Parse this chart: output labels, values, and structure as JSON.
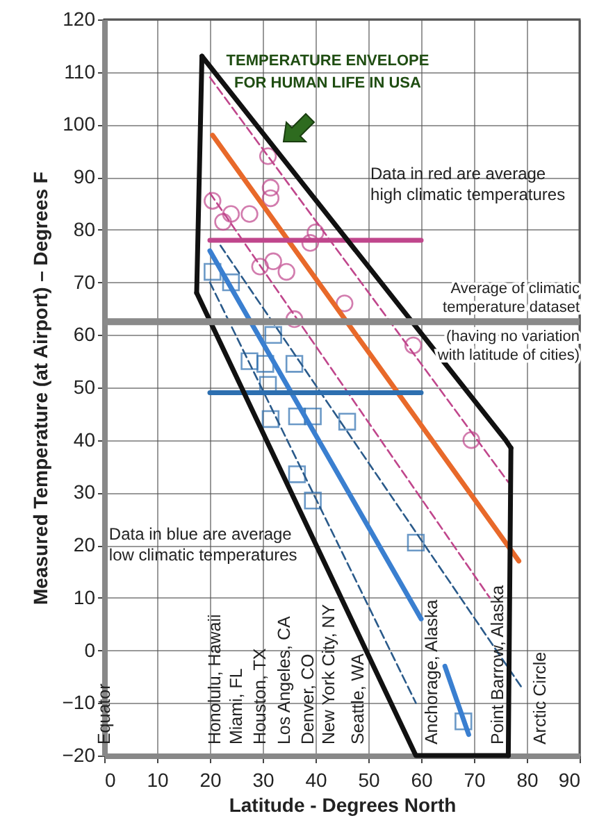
{
  "chart_data": {
    "type": "scatter",
    "title": "TEMPERATURE ENVELOPE\nFOR HUMAN LIFE IN USA",
    "xlabel": "Latitude - Degrees North",
    "ylabel": "Measured Temperature (at Airport) – Degrees F",
    "xlim": [
      0,
      90
    ],
    "xticks": [
      0,
      10,
      20,
      30,
      40,
      50,
      60,
      70,
      80,
      90
    ],
    "ylim": [
      -20,
      120
    ],
    "yticks": [
      -20,
      -10,
      0,
      10,
      20,
      30,
      40,
      50,
      60,
      70,
      80,
      90,
      100,
      110,
      120
    ],
    "grid": true,
    "series": [
      {
        "type": "scatter",
        "marker": "circle",
        "color": "#c0468c",
        "x": [
          31,
          31.5,
          20.5,
          22.5,
          24,
          27.5,
          31.5,
          40,
          39,
          32,
          34.5,
          29.5,
          45.5,
          36,
          58.5,
          69.5
        ],
        "values": [
          94,
          88,
          85.5,
          81.5,
          83,
          83,
          86,
          79.5,
          77.5,
          74,
          72,
          73,
          66,
          63,
          58,
          40
        ]
      },
      {
        "type": "scatter",
        "marker": "square",
        "color": "#2d6fb0",
        "x": [
          20.5,
          24,
          32,
          27.5,
          30.5,
          36,
          31,
          31.5,
          36.5,
          39.5,
          46,
          36.5,
          39.5,
          59,
          68
        ],
        "values": [
          72,
          70,
          60,
          55,
          54.5,
          54.5,
          50.5,
          44,
          44.5,
          44.5,
          43.5,
          33.5,
          28.5,
          20.5,
          -13.5
        ]
      },
      {
        "type": "line",
        "line_style": "solid",
        "color": "#e8692a",
        "x": [
          20.5,
          78.5
        ],
        "values": [
          98,
          17
        ]
      },
      {
        "type": "line",
        "line_style": "solid",
        "color": "#3a7fd0",
        "x": [
          20,
          60
        ],
        "values": [
          76,
          6
        ]
      },
      {
        "type": "line",
        "line_style": "solid",
        "color": "#3a7fd0",
        "x": [
          64.5,
          69
        ],
        "values": [
          -3,
          -16
        ]
      },
      {
        "type": "line",
        "line_style": "dashed",
        "color": "#c0468c",
        "x": [
          20,
          76.5
        ],
        "values": [
          109,
          32
        ]
      },
      {
        "type": "line",
        "line_style": "dashed",
        "color": "#c0468c",
        "x": [
          20,
          73
        ],
        "values": [
          87,
          10
        ]
      },
      {
        "type": "line",
        "line_style": "dashed",
        "color": "#2a5a8a",
        "x": [
          22,
          79
        ],
        "values": [
          77,
          -7
        ]
      },
      {
        "type": "line",
        "line_style": "dashed",
        "color": "#2a5a8a",
        "x": [
          20,
          59
        ],
        "values": [
          70,
          -10
        ]
      },
      {
        "type": "line",
        "line_style": "solid",
        "color": "#c0468c",
        "x": [
          20,
          60
        ],
        "values": [
          78,
          78
        ]
      },
      {
        "type": "line",
        "line_style": "solid",
        "color": "#2d6fb0",
        "x": [
          20,
          60
        ],
        "values": [
          49,
          49
        ]
      },
      {
        "type": "line",
        "line_style": "solid",
        "color": "#111111",
        "x": [
          17.5,
          18.5
        ],
        "values": [
          68,
          113
        ]
      },
      {
        "type": "line",
        "line_style": "solid",
        "color": "#111111",
        "x": [
          17.5,
          59,
          76.5
        ],
        "values": [
          68,
          -20,
          -20
        ]
      },
      {
        "type": "line",
        "line_style": "solid",
        "color": "#111111",
        "x": [
          76.5,
          77
        ],
        "values": [
          -20,
          38.5
        ]
      },
      {
        "type": "line",
        "line_style": "solid",
        "color": "#111111",
        "x": [
          18.5,
          76,
          77
        ],
        "values": [
          113,
          40,
          38.5
        ]
      }
    ],
    "ref_lines": [
      {
        "axis": "y",
        "value": 62.5,
        "color": "#8a8a8a",
        "label": "Average of climatic\ntemperature dataset\n(having no variation\nwith latitude of cities)"
      }
    ],
    "annotations": [
      "Data in red are average\nhigh climatic temperatures",
      "Data in blue are average\nlow climatic temperatures",
      "Equator",
      "Honolulu, Hawaii",
      "Miami, FL",
      "Houston, TX",
      "Los Angeles, CA",
      "Denver, CO",
      "New York City, NY",
      "Seattle, WA",
      "Anchorage, Alaska",
      "Point Barrow, Alaska",
      "Arctic Circle"
    ]
  }
}
